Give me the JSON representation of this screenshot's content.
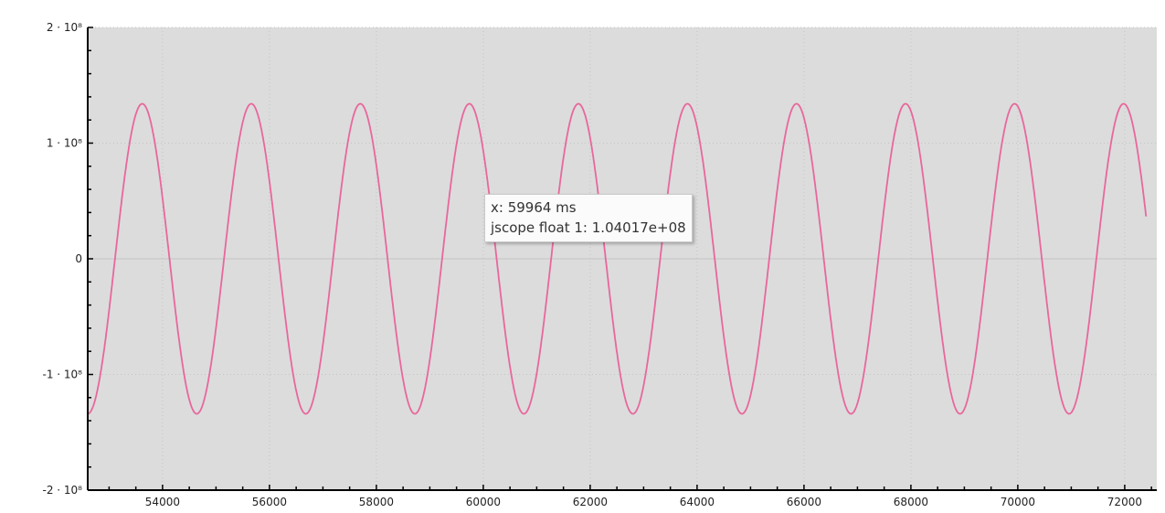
{
  "chart_data": {
    "type": "line",
    "title": "",
    "xlabel": "",
    "ylabel": "",
    "xlim": [
      52600,
      72600
    ],
    "ylim": [
      -200000000,
      200000000
    ],
    "x_ticks": [
      54000,
      56000,
      58000,
      60000,
      62000,
      64000,
      66000,
      68000,
      70000,
      72000
    ],
    "y_ticks": [
      {
        "value": 200000000,
        "label": "2 · 10⁸"
      },
      {
        "value": 100000000,
        "label": "1 · 10⁸"
      },
      {
        "value": 0,
        "label": "0"
      },
      {
        "value": -100000000,
        "label": "-1 · 10⁸"
      },
      {
        "value": -200000000,
        "label": "-2 · 10⁸"
      }
    ],
    "grid": true,
    "series": [
      {
        "name": "jscope float 1",
        "color": "#e8679c",
        "amplitude": 134000000,
        "period_ms": 2040,
        "peak_at_ms": 53620,
        "x_start": 52600,
        "x_end": 72400
      }
    ]
  },
  "tooltip": {
    "line1": "x: 59964 ms",
    "line2": "jscope float 1: 1.04017e+08"
  },
  "colors": {
    "plot_background": "#dcdcdc",
    "grid": "#c4c4c4",
    "axis": "#000000",
    "series": "#e8679c"
  }
}
